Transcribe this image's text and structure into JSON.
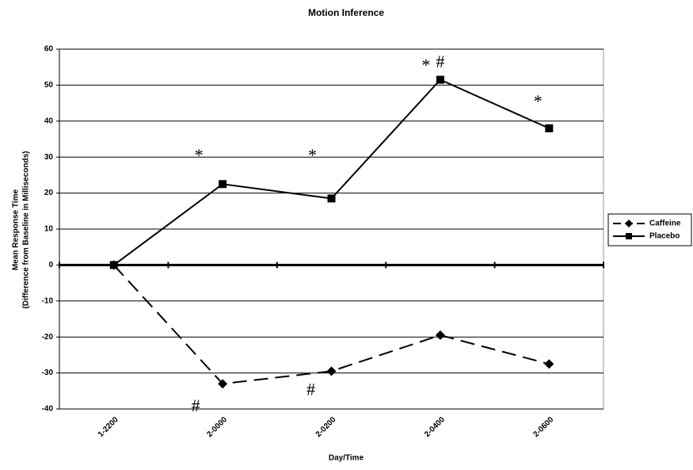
{
  "chart_data": {
    "type": "line",
    "title": "Motion Inference",
    "x_label": "Day/Time",
    "y_label": [
      "Mean Response Time",
      "(Difference from Baseline in Milliseconds)"
    ],
    "categories": [
      "1-2200",
      "2-0000",
      "2-0200",
      "2-0400",
      "2-0600"
    ],
    "series": [
      {
        "name": "Caffeine",
        "color": "#000000",
        "dash": true,
        "marker": "diamond",
        "values": [
          0,
          -33,
          -29.5,
          -19.5,
          -27.5
        ]
      },
      {
        "name": "Placebo",
        "color": "#000000",
        "dash": false,
        "marker": "square",
        "values": [
          0,
          22.5,
          18.5,
          51.5,
          38
        ]
      }
    ],
    "annotations": [
      "*",
      "*",
      "*",
      "#",
      "*",
      "#",
      "#"
    ],
    "ylim": [
      -40,
      60
    ],
    "yticks": [
      -40,
      -30,
      -20,
      -10,
      0,
      10,
      20,
      30,
      40,
      50,
      60
    ],
    "grid": true,
    "legend": "right"
  }
}
